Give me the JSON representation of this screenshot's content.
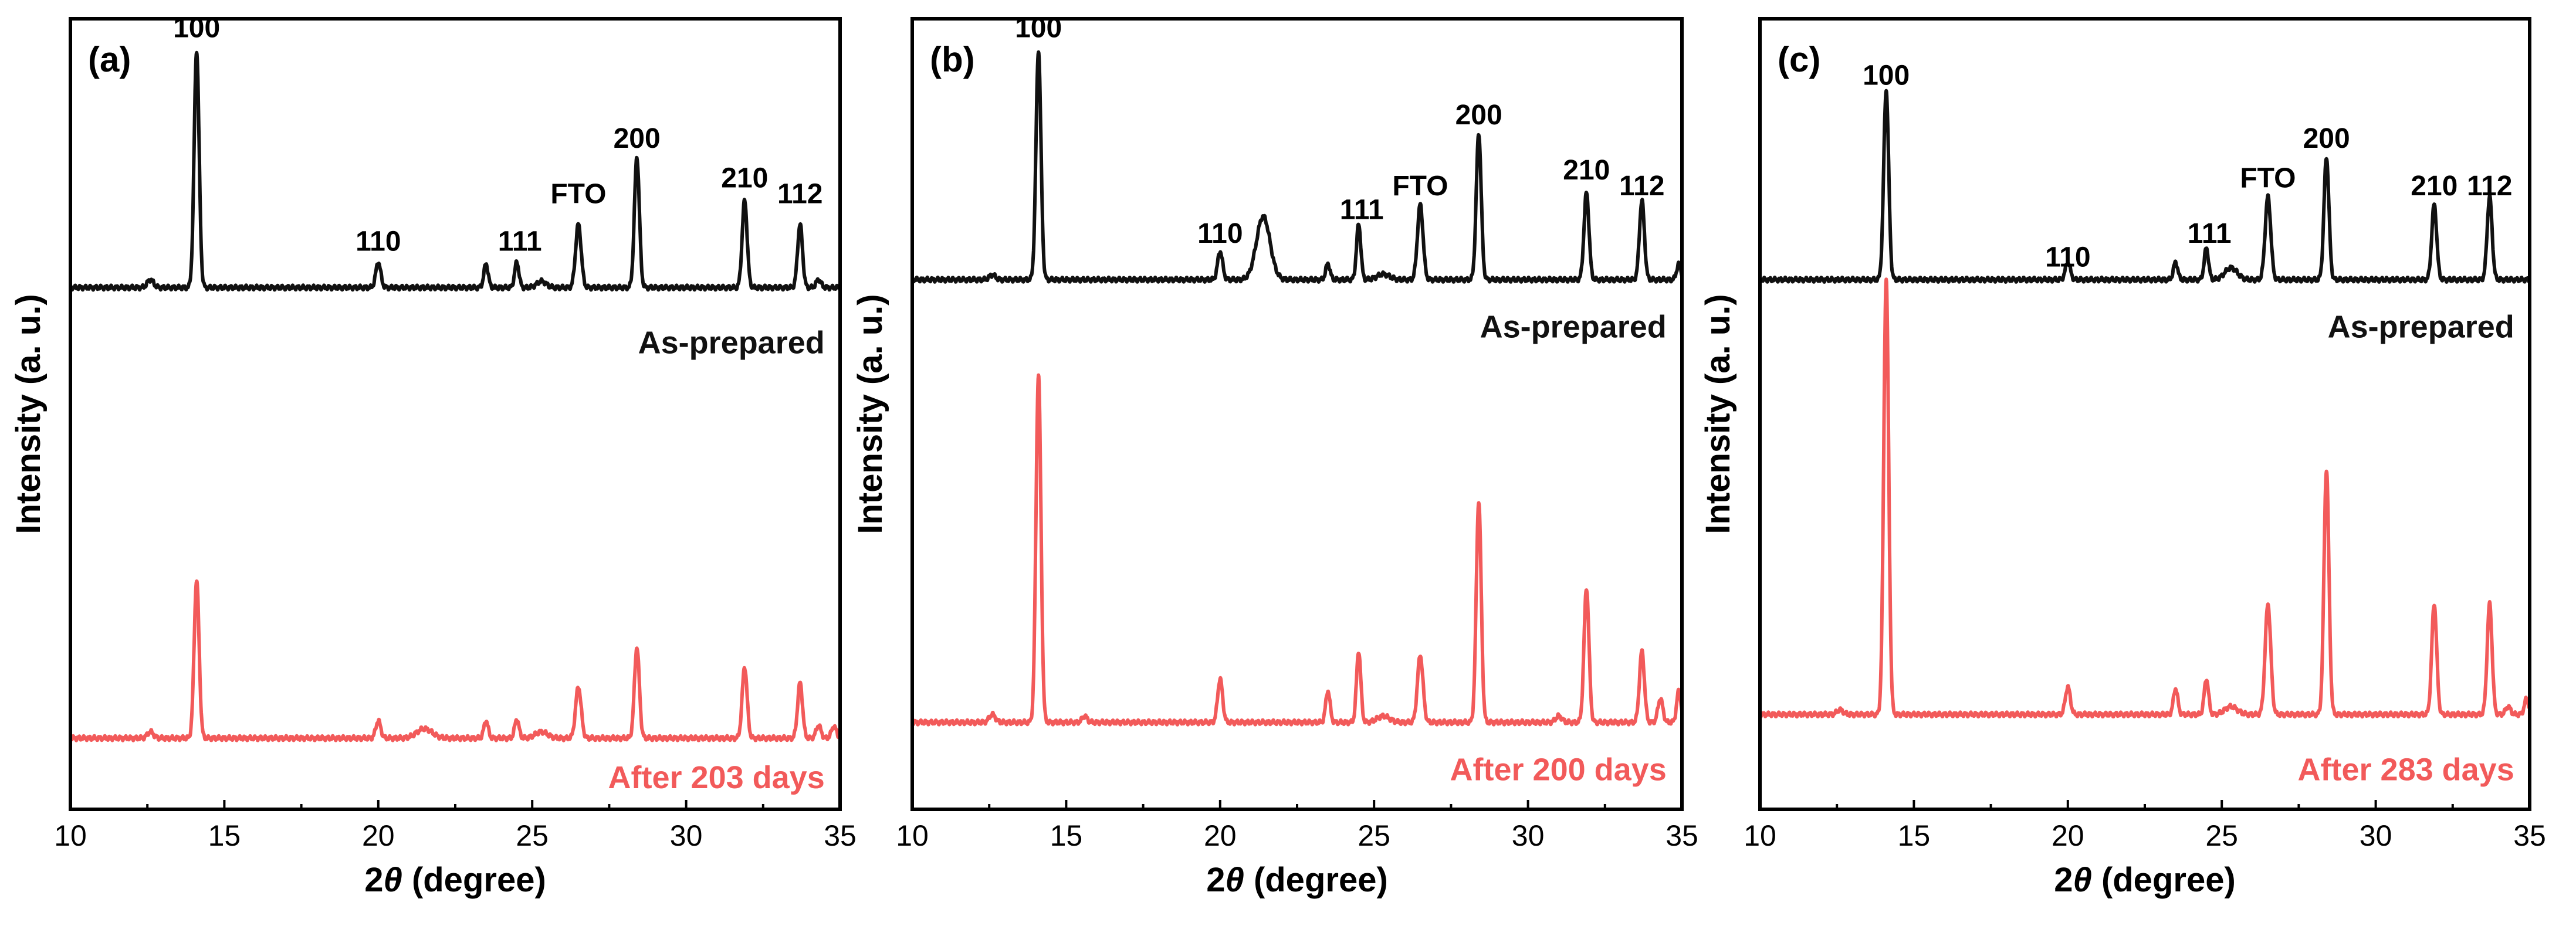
{
  "colors": {
    "as_prepared": "#111111",
    "aged": "#f25a5a"
  },
  "chart_data": [
    {
      "type": "line",
      "panel": "(a)",
      "xlabel": "2θ (degree)",
      "ylabel": "Intensity (a. u.)",
      "xlim": [
        10,
        35
      ],
      "ylim": [
        0,
        100
      ],
      "xticks": [
        "10",
        "15",
        "20",
        "25",
        "30",
        "35"
      ],
      "series": [
        {
          "name": "As-prepared",
          "color": "#111111",
          "baseline": 66,
          "peaks": [
            {
              "x": 12.6,
              "h": 1,
              "w": 0.1
            },
            {
              "x": 14.1,
              "h": 30,
              "w": 0.08
            },
            {
              "x": 20.0,
              "h": 3.2,
              "w": 0.08
            },
            {
              "x": 23.5,
              "h": 3.0,
              "w": 0.07
            },
            {
              "x": 24.5,
              "h": 3.2,
              "w": 0.07
            },
            {
              "x": 25.3,
              "h": 0.8,
              "w": 0.15
            },
            {
              "x": 26.5,
              "h": 8.0,
              "w": 0.09
            },
            {
              "x": 28.4,
              "h": 16.5,
              "w": 0.08
            },
            {
              "x": 31.9,
              "h": 11.0,
              "w": 0.08
            },
            {
              "x": 33.7,
              "h": 8.0,
              "w": 0.08
            },
            {
              "x": 34.3,
              "h": 1.0,
              "w": 0.08
            }
          ]
        },
        {
          "name": "After 203 days",
          "color": "#f25a5a",
          "baseline": 9,
          "peaks": [
            {
              "x": 12.6,
              "h": 0.8,
              "w": 0.1
            },
            {
              "x": 14.1,
              "h": 20,
              "w": 0.08
            },
            {
              "x": 20.0,
              "h": 2.2,
              "w": 0.08
            },
            {
              "x": 21.5,
              "h": 1.2,
              "w": 0.25
            },
            {
              "x": 23.5,
              "h": 2.2,
              "w": 0.07
            },
            {
              "x": 24.5,
              "h": 2.4,
              "w": 0.07
            },
            {
              "x": 25.3,
              "h": 0.8,
              "w": 0.2
            },
            {
              "x": 26.5,
              "h": 6.5,
              "w": 0.09
            },
            {
              "x": 28.4,
              "h": 11.5,
              "w": 0.08
            },
            {
              "x": 31.9,
              "h": 9.0,
              "w": 0.08
            },
            {
              "x": 33.7,
              "h": 7.0,
              "w": 0.08
            },
            {
              "x": 34.3,
              "h": 1.6,
              "w": 0.08
            },
            {
              "x": 34.8,
              "h": 1.5,
              "w": 0.08
            }
          ]
        }
      ],
      "annotations": [
        {
          "text": "100",
          "x": 14.1,
          "y": 99
        },
        {
          "text": "110",
          "x": 20.0,
          "y": 72
        },
        {
          "text": "111",
          "x": 24.6,
          "y": 72
        },
        {
          "text": "FTO",
          "x": 26.5,
          "y": 78
        },
        {
          "text": "200",
          "x": 28.4,
          "y": 85
        },
        {
          "text": "210",
          "x": 31.9,
          "y": 80
        },
        {
          "text": "112",
          "x": 33.7,
          "y": 78
        }
      ],
      "series_labels": [
        {
          "text": "As-prepared",
          "x": 34.5,
          "y": 59,
          "color": "#111111"
        },
        {
          "text": "After 203 days",
          "x": 34.5,
          "y": 4,
          "color": "#f25a5a"
        }
      ]
    },
    {
      "type": "line",
      "panel": "(b)",
      "xlabel": "2θ (degree)",
      "ylabel": "Intensity (a. u.)",
      "xlim": [
        10,
        35
      ],
      "ylim": [
        0,
        100
      ],
      "xticks": [
        "10",
        "15",
        "20",
        "25",
        "30",
        "35"
      ],
      "series": [
        {
          "name": "As-prepared",
          "color": "#111111",
          "baseline": 67,
          "peaks": [
            {
              "x": 12.6,
              "h": 0.6,
              "w": 0.1
            },
            {
              "x": 14.1,
              "h": 29,
              "w": 0.08
            },
            {
              "x": 20.0,
              "h": 3.6,
              "w": 0.08
            },
            {
              "x": 21.4,
              "h": 8.0,
              "w": 0.22
            },
            {
              "x": 23.5,
              "h": 2.0,
              "w": 0.07
            },
            {
              "x": 24.5,
              "h": 7.0,
              "w": 0.07
            },
            {
              "x": 25.3,
              "h": 0.7,
              "w": 0.2
            },
            {
              "x": 26.5,
              "h": 9.5,
              "w": 0.09
            },
            {
              "x": 28.4,
              "h": 18.5,
              "w": 0.08
            },
            {
              "x": 31.9,
              "h": 11.0,
              "w": 0.08
            },
            {
              "x": 33.7,
              "h": 10.0,
              "w": 0.08
            },
            {
              "x": 34.9,
              "h": 2.0,
              "w": 0.07
            }
          ]
        },
        {
          "name": "After 200 days",
          "color": "#f25a5a",
          "baseline": 11,
          "peaks": [
            {
              "x": 12.6,
              "h": 1.0,
              "w": 0.1
            },
            {
              "x": 14.1,
              "h": 44,
              "w": 0.08
            },
            {
              "x": 15.6,
              "h": 0.8,
              "w": 0.08
            },
            {
              "x": 20.0,
              "h": 5.5,
              "w": 0.08
            },
            {
              "x": 23.5,
              "h": 4.0,
              "w": 0.07
            },
            {
              "x": 24.5,
              "h": 9.0,
              "w": 0.07
            },
            {
              "x": 25.3,
              "h": 0.8,
              "w": 0.2
            },
            {
              "x": 26.5,
              "h": 8.5,
              "w": 0.09
            },
            {
              "x": 28.4,
              "h": 28.0,
              "w": 0.08
            },
            {
              "x": 31.0,
              "h": 0.8,
              "w": 0.1
            },
            {
              "x": 31.9,
              "h": 17.0,
              "w": 0.08
            },
            {
              "x": 33.7,
              "h": 9.0,
              "w": 0.08
            },
            {
              "x": 34.3,
              "h": 3.0,
              "w": 0.08
            },
            {
              "x": 34.9,
              "h": 4.0,
              "w": 0.07
            }
          ]
        }
      ],
      "annotations": [
        {
          "text": "100",
          "x": 14.1,
          "y": 99
        },
        {
          "text": "110",
          "x": 20.0,
          "y": 73
        },
        {
          "text": "111",
          "x": 24.6,
          "y": 76
        },
        {
          "text": "FTO",
          "x": 26.5,
          "y": 79
        },
        {
          "text": "200",
          "x": 28.4,
          "y": 88
        },
        {
          "text": "210",
          "x": 31.9,
          "y": 81
        },
        {
          "text": "112",
          "x": 33.7,
          "y": 79
        }
      ],
      "series_labels": [
        {
          "text": "As-prepared",
          "x": 34.5,
          "y": 61,
          "color": "#111111"
        },
        {
          "text": "After 200 days",
          "x": 34.5,
          "y": 5,
          "color": "#f25a5a"
        }
      ]
    },
    {
      "type": "line",
      "panel": "(c)",
      "xlabel": "2θ (degree)",
      "ylabel": "Intensity (a. u.)",
      "xlim": [
        10,
        35
      ],
      "ylim": [
        0,
        100
      ],
      "xticks": [
        "10",
        "15",
        "20",
        "25",
        "30",
        "35"
      ],
      "series": [
        {
          "name": "As-prepared",
          "color": "#111111",
          "baseline": 67,
          "peaks": [
            {
              "x": 14.1,
              "h": 24,
              "w": 0.08
            },
            {
              "x": 20.0,
              "h": 2.2,
              "w": 0.08
            },
            {
              "x": 23.5,
              "h": 2.2,
              "w": 0.07
            },
            {
              "x": 24.5,
              "h": 4.0,
              "w": 0.07
            },
            {
              "x": 25.3,
              "h": 1.5,
              "w": 0.2
            },
            {
              "x": 26.5,
              "h": 10.5,
              "w": 0.09
            },
            {
              "x": 28.4,
              "h": 15.5,
              "w": 0.08
            },
            {
              "x": 31.9,
              "h": 9.5,
              "w": 0.08
            },
            {
              "x": 33.7,
              "h": 10.5,
              "w": 0.08
            }
          ]
        },
        {
          "name": "After 283 days",
          "color": "#f25a5a",
          "baseline": 12,
          "peaks": [
            {
              "x": 12.6,
              "h": 0.6,
              "w": 0.1
            },
            {
              "x": 14.1,
              "h": 55,
              "w": 0.08
            },
            {
              "x": 20.0,
              "h": 3.5,
              "w": 0.08
            },
            {
              "x": 23.5,
              "h": 3.3,
              "w": 0.07
            },
            {
              "x": 24.5,
              "h": 4.5,
              "w": 0.07
            },
            {
              "x": 25.3,
              "h": 1.0,
              "w": 0.2
            },
            {
              "x": 26.5,
              "h": 14.0,
              "w": 0.09
            },
            {
              "x": 28.4,
              "h": 31.0,
              "w": 0.08
            },
            {
              "x": 31.9,
              "h": 14.0,
              "w": 0.08
            },
            {
              "x": 33.7,
              "h": 14.0,
              "w": 0.08
            },
            {
              "x": 34.3,
              "h": 1.0,
              "w": 0.08
            },
            {
              "x": 34.9,
              "h": 2.0,
              "w": 0.07
            }
          ]
        }
      ],
      "annotations": [
        {
          "text": "100",
          "x": 14.1,
          "y": 93
        },
        {
          "text": "110",
          "x": 20.0,
          "y": 70
        },
        {
          "text": "111",
          "x": 24.6,
          "y": 73
        },
        {
          "text": "FTO",
          "x": 26.5,
          "y": 80
        },
        {
          "text": "200",
          "x": 28.4,
          "y": 85
        },
        {
          "text": "210",
          "x": 31.9,
          "y": 79
        },
        {
          "text": "112",
          "x": 33.7,
          "y": 79
        }
      ],
      "series_labels": [
        {
          "text": "As-prepared",
          "x": 34.5,
          "y": 61,
          "color": "#111111"
        },
        {
          "text": "After 283 days",
          "x": 34.5,
          "y": 5,
          "color": "#f25a5a"
        }
      ]
    }
  ]
}
